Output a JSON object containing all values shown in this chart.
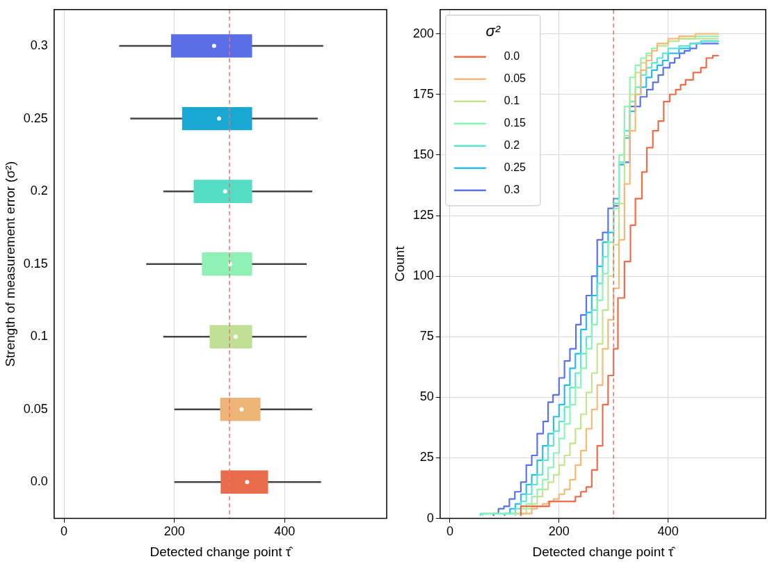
{
  "chart_data": [
    {
      "type": "box",
      "orientation": "horizontal",
      "xlabel": "Detected change point τ̂",
      "ylabel": "Strength of measurement error (σ²)",
      "categories": [
        "0.3",
        "0.25",
        "0.2",
        "0.15",
        "0.1",
        "0.05",
        "0.0"
      ],
      "colors": [
        "#5a6ee8",
        "#1aa7d4",
        "#55dcc4",
        "#8ef0b4",
        "#c0e096",
        "#ecb476",
        "#e86c4c"
      ],
      "boxes": [
        {
          "low": 100,
          "q1": 194,
          "median": 272,
          "q3": 341,
          "high": 470
        },
        {
          "low": 120,
          "q1": 214,
          "median": 281,
          "q3": 341,
          "high": 460
        },
        {
          "low": 180,
          "q1": 235,
          "median": 292,
          "q3": 341,
          "high": 450
        },
        {
          "low": 149,
          "q1": 250,
          "median": 301,
          "q3": 341,
          "high": 440
        },
        {
          "low": 180,
          "q1": 264,
          "median": 311,
          "q3": 341,
          "high": 440
        },
        {
          "low": 200,
          "q1": 283,
          "median": 322,
          "q3": 356,
          "high": 450
        },
        {
          "low": 200,
          "q1": 284,
          "median": 332,
          "q3": 370,
          "high": 466
        }
      ],
      "xlim": [
        -18,
        585
      ],
      "xticks": [
        0,
        200,
        400
      ],
      "grid": "x",
      "ref_lines": [
        {
          "axis": "x",
          "value": 300,
          "color": "#f07070",
          "line_style": "dashed"
        }
      ]
    },
    {
      "type": "step",
      "xlabel": "Detected change point τ̂",
      "ylabel": "Count",
      "legend": "top left",
      "legend_title": "σ²",
      "grid": true,
      "xlim": [
        -18,
        579
      ],
      "xticks": [
        0,
        200,
        400
      ],
      "ylim": [
        0,
        210
      ],
      "yticks": [
        0,
        25,
        50,
        75,
        100,
        125,
        150,
        175,
        200
      ],
      "ref_lines": [
        {
          "axis": "x",
          "value": 300,
          "color": "#f07070",
          "line_style": "dashed"
        }
      ],
      "series": [
        {
          "name": "0.0",
          "color": "#f46a46",
          "x": [
            130,
            182,
            230,
            240,
            250,
            260,
            270,
            280,
            290,
            300,
            308,
            320,
            331,
            340,
            352,
            361,
            372,
            382,
            392,
            403,
            414,
            423,
            432,
            446,
            460,
            470,
            482,
            493
          ],
          "values": [
            1,
            5,
            7,
            9,
            11,
            13,
            20,
            30,
            47,
            59,
            70,
            91,
            106,
            121,
            132,
            143,
            153,
            160,
            164,
            172,
            175,
            177,
            179,
            181,
            184,
            186,
            190,
            191
          ]
        },
        {
          "name": "0.05",
          "color": "#f8b878",
          "x": [
            130,
            150,
            160,
            170,
            180,
            190,
            200,
            210,
            220,
            230,
            240,
            250,
            260,
            270,
            280,
            290,
            300,
            310,
            320,
            330,
            340,
            350,
            360,
            370,
            380,
            400,
            420,
            450,
            493
          ],
          "values": [
            1,
            2,
            4,
            5,
            6,
            7,
            8,
            10,
            12,
            16,
            22,
            28,
            37,
            45,
            55,
            70,
            82,
            95,
            115,
            138,
            160,
            175,
            185,
            189,
            193,
            196,
            198,
            199,
            200
          ]
        },
        {
          "name": "0.1",
          "color": "#c0e58e",
          "x": [
            120,
            140,
            150,
            160,
            170,
            180,
            190,
            200,
            210,
            220,
            230,
            240,
            250,
            260,
            270,
            280,
            290,
            300,
            310,
            320,
            330,
            340,
            350,
            360,
            370,
            380,
            400,
            420,
            450,
            493
          ],
          "values": [
            1,
            2,
            4,
            6,
            9,
            12,
            15,
            18,
            22,
            26,
            31,
            37,
            43,
            52,
            60,
            72,
            86,
            100,
            113,
            130,
            158,
            175,
            184,
            188,
            191,
            193,
            195,
            197,
            198,
            198
          ]
        },
        {
          "name": "0.15",
          "color": "#8cf5b6",
          "x": [
            60,
            130,
            140,
            150,
            160,
            170,
            180,
            190,
            200,
            210,
            220,
            230,
            240,
            250,
            260,
            270,
            280,
            290,
            300,
            310,
            320,
            330,
            340,
            350,
            360,
            370,
            380,
            400,
            420,
            450,
            493
          ],
          "values": [
            1,
            2,
            4,
            6,
            9,
            12,
            16,
            21,
            27,
            33,
            39,
            47,
            54,
            62,
            70,
            80,
            90,
            101,
            114,
            128,
            150,
            170,
            182,
            187,
            190,
            192,
            194,
            196,
            197,
            198,
            199
          ]
        },
        {
          "name": "0.2",
          "color": "#5ee6d0",
          "x": [
            56,
            120,
            130,
            140,
            150,
            160,
            170,
            180,
            190,
            200,
            210,
            220,
            230,
            240,
            250,
            260,
            270,
            280,
            290,
            300,
            310,
            320,
            330,
            340,
            350,
            360,
            370,
            380,
            390,
            400,
            420,
            440,
            460,
            493
          ],
          "values": [
            1,
            2,
            4,
            7,
            10,
            14,
            18,
            24,
            30,
            36,
            40,
            46,
            54,
            60,
            68,
            75,
            86,
            97,
            108,
            114,
            130,
            147,
            160,
            172,
            178,
            183,
            186,
            188,
            190,
            192,
            194,
            195,
            196,
            197
          ]
        },
        {
          "name": "0.25",
          "color": "#2cbcec",
          "x": [
            100,
            110,
            120,
            130,
            140,
            150,
            160,
            170,
            180,
            190,
            200,
            210,
            220,
            230,
            240,
            250,
            260,
            270,
            280,
            290,
            300,
            310,
            320,
            330,
            340,
            350,
            360,
            370,
            380,
            390,
            400,
            420,
            440,
            460,
            493
          ],
          "values": [
            1,
            2,
            4,
            6,
            10,
            14,
            18,
            24,
            30,
            35,
            42,
            47,
            55,
            62,
            68,
            78,
            85,
            92,
            104,
            114,
            118,
            132,
            146,
            157,
            168,
            175,
            178,
            182,
            185,
            187,
            189,
            192,
            194,
            196,
            197
          ]
        },
        {
          "name": "0.3",
          "color": "#5a72ee",
          "x": [
            80,
            89,
            99,
            109,
            119,
            130,
            140,
            150,
            160,
            171,
            180,
            189,
            200,
            210,
            220,
            231,
            240,
            250,
            260,
            270,
            280,
            290,
            300,
            310,
            320,
            330,
            349,
            361,
            372,
            382,
            391,
            403,
            412,
            421,
            430,
            440,
            452,
            470,
            493
          ],
          "values": [
            1,
            2,
            4,
            5,
            8,
            11,
            15,
            22,
            26,
            35,
            40,
            48,
            51,
            58,
            65,
            70,
            80,
            84,
            92,
            100,
            115,
            118,
            128,
            129,
            146,
            147,
            170,
            174,
            177,
            180,
            183,
            186,
            188,
            190,
            192,
            193,
            194,
            196,
            196
          ]
        }
      ]
    }
  ]
}
